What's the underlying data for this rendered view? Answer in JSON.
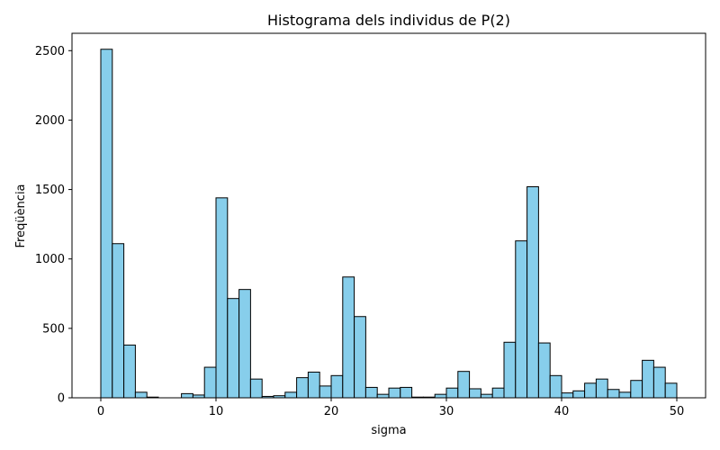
{
  "chart_data": {
    "type": "bar",
    "title": "Histograma dels individus de P(2)",
    "xlabel": "sigma",
    "ylabel": "Freqüència",
    "xlim": [
      -2.5,
      52.5
    ],
    "ylim": [
      0,
      2625
    ],
    "x_ticks": [
      0,
      10,
      20,
      30,
      40,
      50
    ],
    "y_ticks": [
      0,
      500,
      1000,
      1500,
      2000,
      2500
    ],
    "bin_start": 0,
    "bin_width": 1,
    "values": [
      2510,
      1110,
      380,
      40,
      5,
      0,
      0,
      30,
      20,
      220,
      1440,
      715,
      780,
      135,
      10,
      15,
      40,
      145,
      185,
      85,
      160,
      870,
      585,
      75,
      25,
      70,
      75,
      5,
      5,
      25,
      70,
      190,
      65,
      25,
      70,
      400,
      1130,
      1520,
      395,
      160,
      35,
      50,
      105,
      135,
      60,
      40,
      125,
      270,
      220,
      105
    ],
    "grid": false,
    "colors": {
      "bar_fill": "#87ceeb",
      "bar_edge": "#000000"
    }
  }
}
